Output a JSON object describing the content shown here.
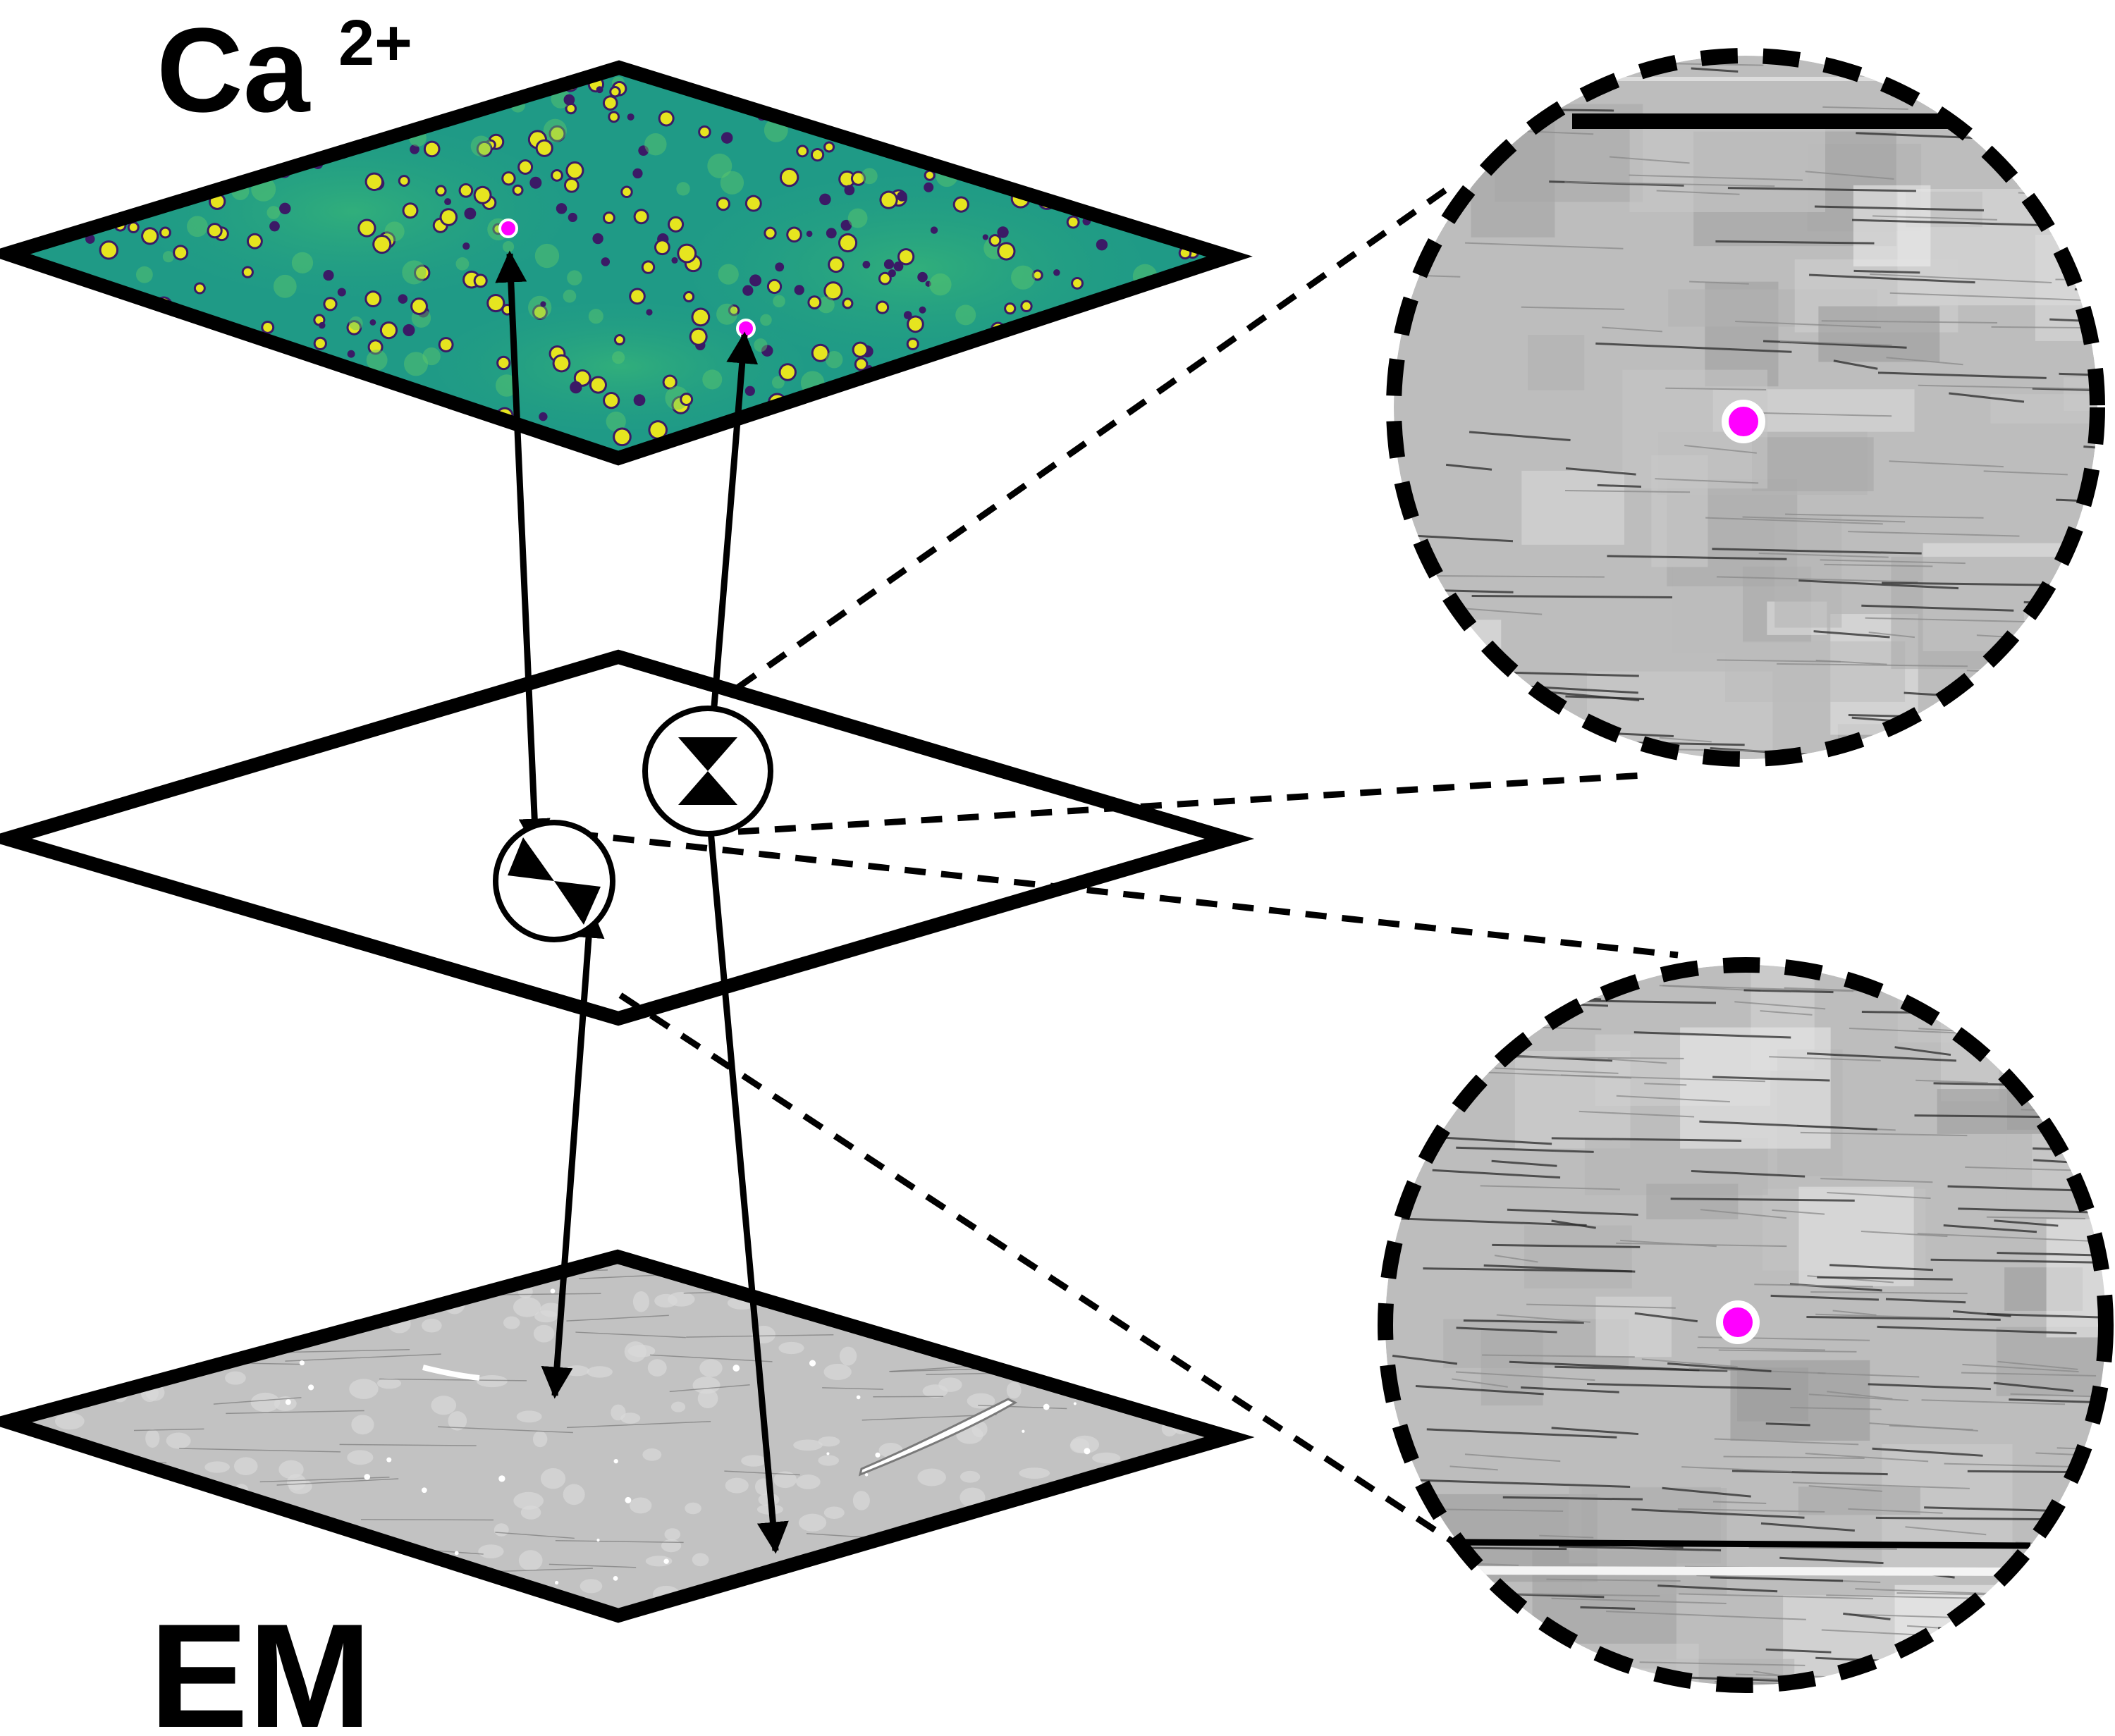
{
  "labels": {
    "calcium": "Ca",
    "calcium_superscript": "2+",
    "em": "EM"
  },
  "colors": {
    "outline": "#000000",
    "marker": "#ff00ff",
    "calcium_base": "#1f9a86",
    "calcium_bright": "#e6e51f",
    "calcium_dark": "#3b1a66",
    "em_base": "#c2c2c2",
    "em_zoom_base": "#bdbdbd"
  },
  "icons": {
    "layer_connector": "bowtie-circle-icon",
    "marker": "magenta-dot"
  }
}
